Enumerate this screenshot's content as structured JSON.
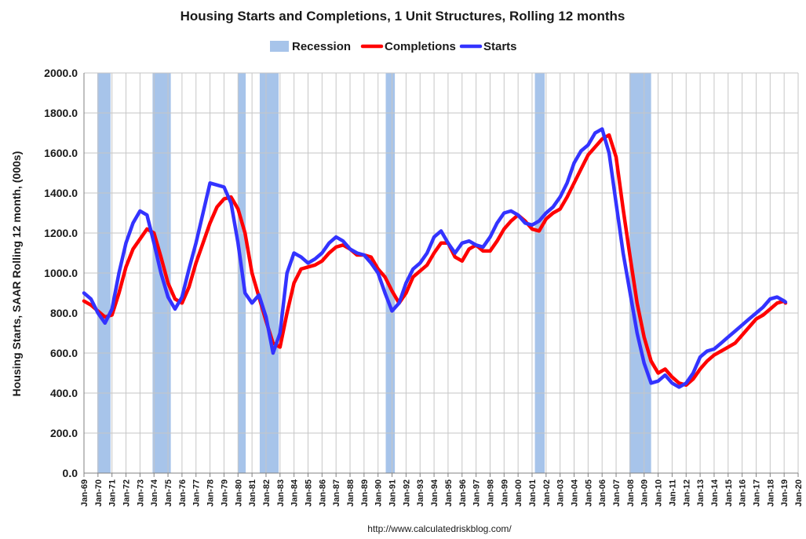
{
  "chart_data": {
    "type": "line",
    "title": "Housing Starts and Completions, 1 Unit Structures, Rolling 12 months",
    "ylabel": "Housing Starts, SAAR Rolling 12 month, (000s)",
    "xlabel": "",
    "source": "http://www.calculatedriskblog.com/",
    "ylim": [
      0,
      2000
    ],
    "xlim": [
      1969.0,
      2020.0
    ],
    "grid": true,
    "legend_position": "top-center",
    "yticks": [
      "0.0",
      "200.0",
      "400.0",
      "600.0",
      "800.0",
      "1000.0",
      "1200.0",
      "1400.0",
      "1600.0",
      "1800.0",
      "2000.0"
    ],
    "xticks": [
      "Jan-69",
      "Jan-70",
      "Jan-71",
      "Jan-72",
      "Jan-73",
      "Jan-74",
      "Jan-75",
      "Jan-76",
      "Jan-77",
      "Jan-78",
      "Jan-79",
      "Jan-80",
      "Jan-81",
      "Jan-82",
      "Jan-83",
      "Jan-84",
      "Jan-85",
      "Jan-86",
      "Jan-87",
      "Jan-88",
      "Jan-89",
      "Jan-90",
      "Jan-91",
      "Jan-92",
      "Jan-93",
      "Jan-94",
      "Jan-95",
      "Jan-96",
      "Jan-97",
      "Jan-98",
      "Jan-99",
      "Jan-00",
      "Jan-01",
      "Jan-02",
      "Jan-03",
      "Jan-04",
      "Jan-05",
      "Jan-06",
      "Jan-07",
      "Jan-08",
      "Jan-09",
      "Jan-10",
      "Jan-11",
      "Jan-12",
      "Jan-13",
      "Jan-14",
      "Jan-15",
      "Jan-16",
      "Jan-17",
      "Jan-18",
      "Jan-19",
      "Jan-20"
    ],
    "legend": [
      {
        "name": "Recession",
        "kind": "band",
        "color": "#a7c4ea"
      },
      {
        "name": "Completions",
        "kind": "line",
        "color": "#ff0000"
      },
      {
        "name": "Starts",
        "kind": "line",
        "color": "#3333ff"
      }
    ],
    "recessions": [
      [
        1969.95,
        1970.9
      ],
      [
        1973.9,
        1975.2
      ],
      [
        1980.0,
        1980.55
      ],
      [
        1981.55,
        1982.9
      ],
      [
        1990.55,
        1991.2
      ],
      [
        2001.2,
        2001.9
      ],
      [
        2007.95,
        2009.5
      ]
    ],
    "series": [
      {
        "name": "Starts",
        "color": "#3333ff",
        "points": [
          [
            1969.0,
            900
          ],
          [
            1969.5,
            870
          ],
          [
            1970.0,
            800
          ],
          [
            1970.5,
            750
          ],
          [
            1971.0,
            820
          ],
          [
            1971.5,
            1000
          ],
          [
            1972.0,
            1150
          ],
          [
            1972.5,
            1250
          ],
          [
            1973.0,
            1310
          ],
          [
            1973.5,
            1290
          ],
          [
            1974.0,
            1150
          ],
          [
            1974.5,
            1000
          ],
          [
            1975.0,
            880
          ],
          [
            1975.5,
            820
          ],
          [
            1976.0,
            880
          ],
          [
            1976.5,
            1020
          ],
          [
            1977.0,
            1150
          ],
          [
            1977.5,
            1300
          ],
          [
            1978.0,
            1450
          ],
          [
            1978.5,
            1440
          ],
          [
            1979.0,
            1430
          ],
          [
            1979.5,
            1350
          ],
          [
            1980.0,
            1150
          ],
          [
            1980.5,
            900
          ],
          [
            1981.0,
            850
          ],
          [
            1981.5,
            890
          ],
          [
            1982.0,
            780
          ],
          [
            1982.5,
            600
          ],
          [
            1983.0,
            700
          ],
          [
            1983.5,
            1000
          ],
          [
            1984.0,
            1100
          ],
          [
            1984.5,
            1080
          ],
          [
            1985.0,
            1050
          ],
          [
            1985.5,
            1070
          ],
          [
            1986.0,
            1100
          ],
          [
            1986.5,
            1150
          ],
          [
            1987.0,
            1180
          ],
          [
            1987.5,
            1160
          ],
          [
            1988.0,
            1120
          ],
          [
            1988.5,
            1100
          ],
          [
            1989.0,
            1090
          ],
          [
            1989.5,
            1050
          ],
          [
            1990.0,
            1000
          ],
          [
            1990.5,
            900
          ],
          [
            1991.0,
            810
          ],
          [
            1991.5,
            850
          ],
          [
            1992.0,
            950
          ],
          [
            1992.5,
            1020
          ],
          [
            1993.0,
            1050
          ],
          [
            1993.5,
            1100
          ],
          [
            1994.0,
            1180
          ],
          [
            1994.5,
            1210
          ],
          [
            1995.0,
            1150
          ],
          [
            1995.5,
            1100
          ],
          [
            1996.0,
            1150
          ],
          [
            1996.5,
            1160
          ],
          [
            1997.0,
            1140
          ],
          [
            1997.5,
            1130
          ],
          [
            1998.0,
            1180
          ],
          [
            1998.5,
            1250
          ],
          [
            1999.0,
            1300
          ],
          [
            1999.5,
            1310
          ],
          [
            2000.0,
            1290
          ],
          [
            2000.5,
            1250
          ],
          [
            2001.0,
            1240
          ],
          [
            2001.5,
            1260
          ],
          [
            2002.0,
            1300
          ],
          [
            2002.5,
            1330
          ],
          [
            2003.0,
            1380
          ],
          [
            2003.5,
            1450
          ],
          [
            2004.0,
            1550
          ],
          [
            2004.5,
            1610
          ],
          [
            2005.0,
            1640
          ],
          [
            2005.5,
            1700
          ],
          [
            2006.0,
            1720
          ],
          [
            2006.5,
            1600
          ],
          [
            2007.0,
            1350
          ],
          [
            2007.5,
            1100
          ],
          [
            2008.0,
            900
          ],
          [
            2008.5,
            700
          ],
          [
            2009.0,
            550
          ],
          [
            2009.5,
            450
          ],
          [
            2010.0,
            460
          ],
          [
            2010.5,
            490
          ],
          [
            2011.0,
            450
          ],
          [
            2011.5,
            430
          ],
          [
            2012.0,
            450
          ],
          [
            2012.5,
            500
          ],
          [
            2013.0,
            580
          ],
          [
            2013.5,
            610
          ],
          [
            2014.0,
            620
          ],
          [
            2014.5,
            650
          ],
          [
            2015.0,
            680
          ],
          [
            2015.5,
            710
          ],
          [
            2016.0,
            740
          ],
          [
            2016.5,
            770
          ],
          [
            2017.0,
            800
          ],
          [
            2017.5,
            830
          ],
          [
            2018.0,
            870
          ],
          [
            2018.5,
            880
          ],
          [
            2019.0,
            860
          ],
          [
            2019.1,
            855
          ]
        ]
      },
      {
        "name": "Completions",
        "color": "#ff0000",
        "points": [
          [
            1969.0,
            860
          ],
          [
            1969.5,
            840
          ],
          [
            1970.0,
            810
          ],
          [
            1970.5,
            780
          ],
          [
            1971.0,
            790
          ],
          [
            1971.5,
            900
          ],
          [
            1972.0,
            1030
          ],
          [
            1972.5,
            1120
          ],
          [
            1973.0,
            1170
          ],
          [
            1973.5,
            1220
          ],
          [
            1974.0,
            1200
          ],
          [
            1974.5,
            1080
          ],
          [
            1975.0,
            950
          ],
          [
            1975.5,
            870
          ],
          [
            1976.0,
            850
          ],
          [
            1976.5,
            930
          ],
          [
            1977.0,
            1050
          ],
          [
            1977.5,
            1150
          ],
          [
            1978.0,
            1250
          ],
          [
            1978.5,
            1330
          ],
          [
            1979.0,
            1370
          ],
          [
            1979.5,
            1380
          ],
          [
            1980.0,
            1320
          ],
          [
            1980.5,
            1200
          ],
          [
            1981.0,
            1000
          ],
          [
            1981.5,
            880
          ],
          [
            1982.0,
            760
          ],
          [
            1982.5,
            650
          ],
          [
            1983.0,
            630
          ],
          [
            1983.5,
            800
          ],
          [
            1984.0,
            950
          ],
          [
            1984.5,
            1020
          ],
          [
            1985.0,
            1030
          ],
          [
            1985.5,
            1040
          ],
          [
            1986.0,
            1060
          ],
          [
            1986.5,
            1100
          ],
          [
            1987.0,
            1130
          ],
          [
            1987.5,
            1140
          ],
          [
            1988.0,
            1120
          ],
          [
            1988.5,
            1090
          ],
          [
            1989.0,
            1090
          ],
          [
            1989.5,
            1080
          ],
          [
            1990.0,
            1020
          ],
          [
            1990.5,
            980
          ],
          [
            1991.0,
            910
          ],
          [
            1991.5,
            850
          ],
          [
            1992.0,
            900
          ],
          [
            1992.5,
            980
          ],
          [
            1993.0,
            1010
          ],
          [
            1993.5,
            1040
          ],
          [
            1994.0,
            1100
          ],
          [
            1994.5,
            1150
          ],
          [
            1995.0,
            1150
          ],
          [
            1995.5,
            1080
          ],
          [
            1996.0,
            1060
          ],
          [
            1996.5,
            1120
          ],
          [
            1997.0,
            1140
          ],
          [
            1997.5,
            1110
          ],
          [
            1998.0,
            1110
          ],
          [
            1998.5,
            1160
          ],
          [
            1999.0,
            1220
          ],
          [
            1999.5,
            1260
          ],
          [
            2000.0,
            1290
          ],
          [
            2000.5,
            1260
          ],
          [
            2001.0,
            1220
          ],
          [
            2001.5,
            1210
          ],
          [
            2002.0,
            1270
          ],
          [
            2002.5,
            1300
          ],
          [
            2003.0,
            1320
          ],
          [
            2003.5,
            1380
          ],
          [
            2004.0,
            1450
          ],
          [
            2004.5,
            1520
          ],
          [
            2005.0,
            1590
          ],
          [
            2005.5,
            1630
          ],
          [
            2006.0,
            1670
          ],
          [
            2006.5,
            1690
          ],
          [
            2007.0,
            1580
          ],
          [
            2007.5,
            1320
          ],
          [
            2008.0,
            1080
          ],
          [
            2008.5,
            850
          ],
          [
            2009.0,
            680
          ],
          [
            2009.5,
            560
          ],
          [
            2010.0,
            500
          ],
          [
            2010.5,
            520
          ],
          [
            2011.0,
            480
          ],
          [
            2011.5,
            450
          ],
          [
            2012.0,
            440
          ],
          [
            2012.5,
            470
          ],
          [
            2013.0,
            520
          ],
          [
            2013.5,
            560
          ],
          [
            2014.0,
            590
          ],
          [
            2014.5,
            610
          ],
          [
            2015.0,
            630
          ],
          [
            2015.5,
            650
          ],
          [
            2016.0,
            690
          ],
          [
            2016.5,
            730
          ],
          [
            2017.0,
            770
          ],
          [
            2017.5,
            790
          ],
          [
            2018.0,
            820
          ],
          [
            2018.5,
            850
          ],
          [
            2019.0,
            860
          ],
          [
            2019.1,
            850
          ]
        ]
      }
    ]
  }
}
